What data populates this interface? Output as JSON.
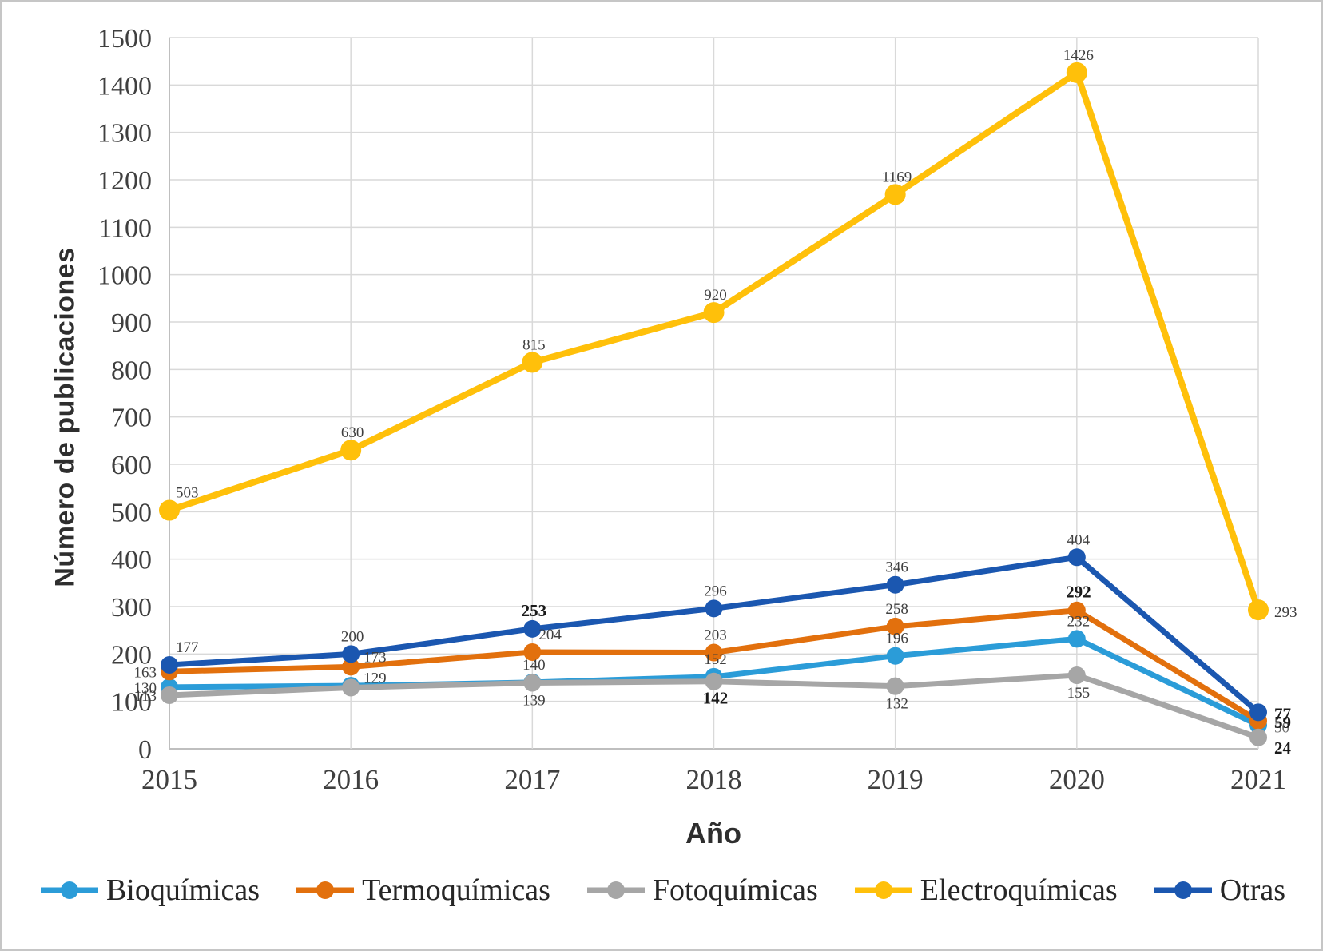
{
  "chart_data": {
    "type": "line",
    "title": "",
    "xlabel": "Año",
    "ylabel": "Número de publicaciones",
    "x": [
      "2015",
      "2016",
      "2017",
      "2018",
      "2019",
      "2020",
      "2021"
    ],
    "ylim": [
      0,
      1500
    ],
    "ytick_step": 100,
    "grid": true,
    "grid_color": "#d9d9d9",
    "axis_color": "#bfbfbf",
    "tick_label_color": "#3f3f3f",
    "data_label_color": "#3f3f3f",
    "data_label_bold_color": "#1a1a1a",
    "legend_position": "bottom",
    "series": [
      {
        "id": "bioquimicas",
        "name": "Bioquímicas",
        "color": "#2b9cd8",
        "values": [
          130,
          133,
          140,
          152,
          196,
          232,
          50
        ],
        "labels": [
          "130",
          "",
          "140",
          "152",
          "196",
          "232",
          "50"
        ],
        "label_pos": [
          "left",
          "",
          "above",
          "above",
          "above",
          "above",
          "right"
        ],
        "label_bold": [
          false,
          false,
          false,
          false,
          false,
          false,
          false
        ],
        "label_color": [
          "",
          "",
          "",
          "",
          "",
          "",
          "#6e6e6e"
        ]
      },
      {
        "id": "termoquimicas",
        "name": "Termoquímicas",
        "color": "#e2700d",
        "values": [
          163,
          173,
          204,
          203,
          258,
          292,
          59
        ],
        "labels": [
          "163",
          "173",
          "204",
          "203",
          "258",
          "292",
          "59"
        ],
        "label_pos": [
          "left",
          "right-above",
          "above-right",
          "above",
          "above",
          "above",
          "right"
        ],
        "label_bold": [
          false,
          false,
          false,
          false,
          false,
          true,
          true
        ],
        "label_color": [
          "",
          "",
          "",
          "",
          "",
          "",
          ""
        ]
      },
      {
        "id": "fotoquimicas",
        "name": "Fotoquímicas",
        "color": "#a6a6a6",
        "values": [
          113,
          129,
          139,
          142,
          132,
          155,
          24
        ],
        "labels": [
          "113",
          "129",
          "139",
          "142",
          "132",
          "155",
          "24"
        ],
        "label_pos": [
          "left",
          "right-above",
          "below",
          "below",
          "below",
          "below",
          "right-below"
        ],
        "label_bold": [
          false,
          false,
          false,
          true,
          false,
          false,
          true
        ],
        "label_color": [
          "",
          "",
          "",
          "",
          "",
          "",
          ""
        ]
      },
      {
        "id": "electroquimicas",
        "name": "Electroquímicas",
        "color": "#ffc00a",
        "values": [
          503,
          630,
          815,
          920,
          1169,
          1426,
          293
        ],
        "labels": [
          "503",
          "630",
          "815",
          "920",
          "1169",
          "1426",
          "293"
        ],
        "label_pos": [
          "above-right",
          "above",
          "above",
          "above",
          "above",
          "above",
          "right"
        ],
        "label_bold": [
          false,
          false,
          false,
          false,
          false,
          false,
          false
        ],
        "label_color": [
          "",
          "",
          "",
          "",
          "",
          "",
          ""
        ]
      },
      {
        "id": "otras",
        "name": "Otras",
        "color": "#1b57b0",
        "values": [
          177,
          200,
          253,
          296,
          346,
          404,
          77
        ],
        "labels": [
          "177",
          "200",
          "253",
          "296",
          "346",
          "404",
          "77"
        ],
        "label_pos": [
          "above-right",
          "above",
          "above",
          "above",
          "above",
          "above",
          "right"
        ],
        "label_bold": [
          false,
          false,
          true,
          false,
          false,
          false,
          true
        ],
        "label_color": [
          "",
          "",
          "",
          "",
          "",
          "",
          ""
        ]
      }
    ]
  }
}
